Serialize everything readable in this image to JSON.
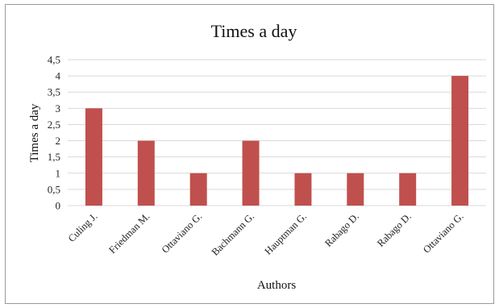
{
  "chart_data": {
    "type": "bar",
    "title": "Times a day",
    "xlabel": "Authors",
    "ylabel": "Times a day",
    "categories": [
      "Culing J.",
      "Friedman M.",
      "Ottaviano G.",
      "Bachmann G.",
      "Hauptman G.",
      "Rabago D.",
      "Rabago D.",
      "Ottaviano G."
    ],
    "series": [
      {
        "values": [
          3,
          2,
          1,
          2,
          1,
          1,
          1,
          4
        ]
      }
    ],
    "ylim": [
      0,
      4.5
    ],
    "yticks": [
      "0",
      "0,5",
      "1",
      "1,5",
      "2",
      "2,5",
      "3",
      "3,5",
      "4",
      "4,5"
    ],
    "grid": true,
    "legend": "none",
    "bar_color": "#c0504d",
    "grid_color": "#d9d9d9"
  }
}
